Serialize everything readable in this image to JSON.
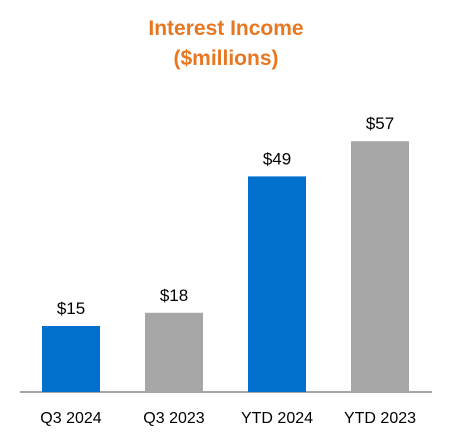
{
  "chart_data": {
    "type": "bar",
    "title_line1": "Interest Income",
    "title_line2": "($millions)",
    "categories": [
      "Q3 2024",
      "Q3 2023",
      "YTD 2024",
      "YTD 2023"
    ],
    "values": [
      15,
      18,
      49,
      57
    ],
    "value_labels": [
      "$15",
      "$18",
      "$49",
      "$57"
    ],
    "colors": [
      "#0070CC",
      "#A6A6A6",
      "#0070CC",
      "#A6A6A6"
    ],
    "axis_color": "#A6A6A6",
    "ylim": [
      0,
      65
    ],
    "grid": false,
    "legend": "none"
  }
}
